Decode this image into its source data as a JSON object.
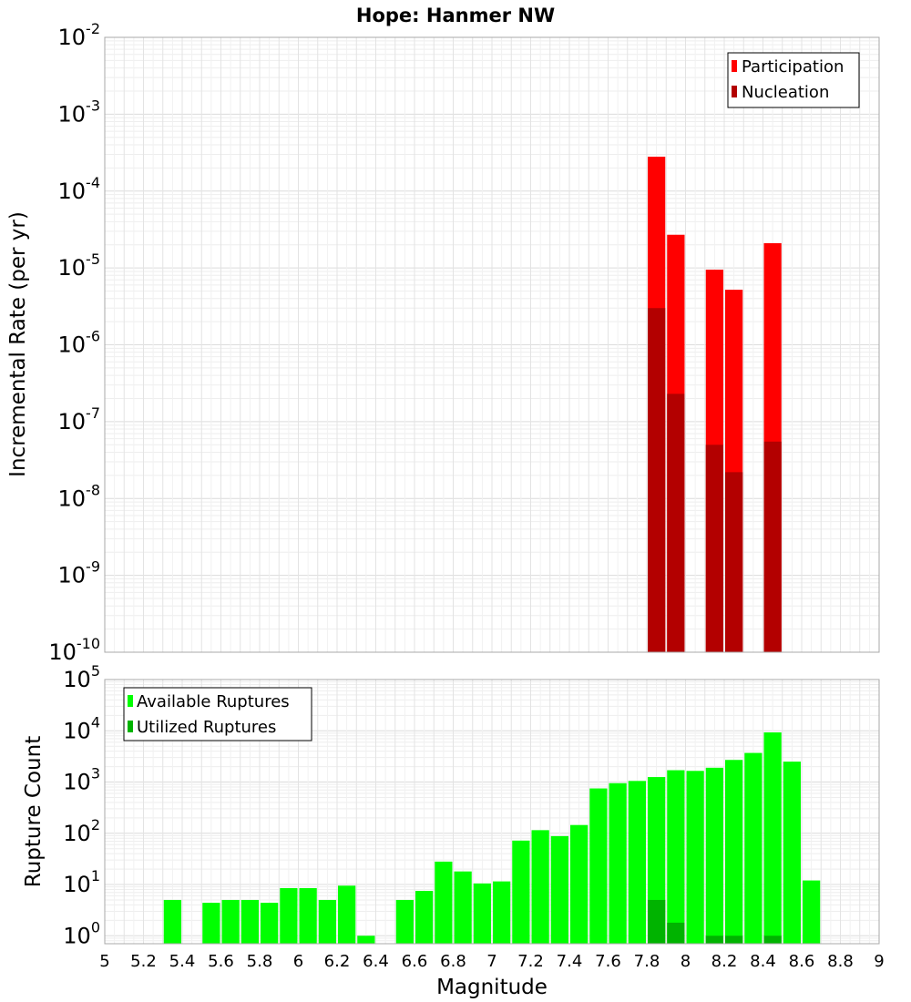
{
  "chart_data": [
    {
      "type": "bar",
      "title": "Hope: Hanmer NW",
      "xlabel": "",
      "ylabel": "Incremental Rate (per yr)",
      "yscale": "log",
      "xlim": [
        5,
        9
      ],
      "ylim": [
        1e-10,
        0.01
      ],
      "y_tick_exponents": [
        -10,
        -9,
        -8,
        -7,
        -6,
        -5,
        -4,
        -3,
        -2
      ],
      "legend_position": "top-right",
      "series": [
        {
          "name": "Participation",
          "color": "#ff0000",
          "points": [
            {
              "x": 7.85,
              "y": 0.00028
            },
            {
              "x": 7.95,
              "y": 2.7e-05
            },
            {
              "x": 8.15,
              "y": 9.5e-06
            },
            {
              "x": 8.25,
              "y": 5.2e-06
            },
            {
              "x": 8.45,
              "y": 2.1e-05
            }
          ]
        },
        {
          "name": "Nucleation",
          "color": "#b30000",
          "points": [
            {
              "x": 7.85,
              "y": 3e-06
            },
            {
              "x": 7.95,
              "y": 2.3e-07
            },
            {
              "x": 8.15,
              "y": 5e-08
            },
            {
              "x": 8.25,
              "y": 2.2e-08
            },
            {
              "x": 8.45,
              "y": 5.5e-08
            }
          ]
        }
      ]
    },
    {
      "type": "bar",
      "title": "",
      "xlabel": "Magnitude",
      "ylabel": "Rupture Count",
      "yscale": "log",
      "xlim": [
        5,
        9
      ],
      "ylim": [
        0.7,
        100000
      ],
      "y_tick_exponents": [
        0,
        1,
        2,
        3,
        4,
        5
      ],
      "x_ticks": [
        "5",
        "5.2",
        "5.4",
        "5.6",
        "5.8",
        "6",
        "6.2",
        "6.4",
        "6.6",
        "6.8",
        "7",
        "7.2",
        "7.4",
        "7.6",
        "7.8",
        "8",
        "8.2",
        "8.4",
        "8.6",
        "8.8",
        "9"
      ],
      "legend_position": "top-left",
      "series": [
        {
          "name": "Available Ruptures",
          "color": "#00ff00",
          "points": [
            {
              "x": 5.35,
              "y": 5
            },
            {
              "x": 5.55,
              "y": 4.4
            },
            {
              "x": 5.65,
              "y": 5
            },
            {
              "x": 5.75,
              "y": 5
            },
            {
              "x": 5.85,
              "y": 4.4
            },
            {
              "x": 5.95,
              "y": 8.5
            },
            {
              "x": 6.05,
              "y": 8.5
            },
            {
              "x": 6.15,
              "y": 5
            },
            {
              "x": 6.25,
              "y": 9.5
            },
            {
              "x": 6.35,
              "y": 1
            },
            {
              "x": 6.55,
              "y": 5
            },
            {
              "x": 6.65,
              "y": 7.5
            },
            {
              "x": 6.75,
              "y": 28
            },
            {
              "x": 6.85,
              "y": 18
            },
            {
              "x": 6.95,
              "y": 10.5
            },
            {
              "x": 7.05,
              "y": 11.5
            },
            {
              "x": 7.15,
              "y": 72
            },
            {
              "x": 7.25,
              "y": 115
            },
            {
              "x": 7.35,
              "y": 88
            },
            {
              "x": 7.45,
              "y": 145
            },
            {
              "x": 7.55,
              "y": 750
            },
            {
              "x": 7.65,
              "y": 950
            },
            {
              "x": 7.75,
              "y": 1050
            },
            {
              "x": 7.85,
              "y": 1250
            },
            {
              "x": 7.95,
              "y": 1700
            },
            {
              "x": 8.05,
              "y": 1650
            },
            {
              "x": 8.15,
              "y": 1900
            },
            {
              "x": 8.25,
              "y": 2700
            },
            {
              "x": 8.35,
              "y": 3700
            },
            {
              "x": 8.45,
              "y": 9300
            },
            {
              "x": 8.55,
              "y": 2500
            },
            {
              "x": 8.65,
              "y": 12
            }
          ]
        },
        {
          "name": "Utilized Ruptures",
          "color": "#00b300",
          "points": [
            {
              "x": 7.85,
              "y": 5
            },
            {
              "x": 7.95,
              "y": 1.8
            },
            {
              "x": 8.15,
              "y": 1
            },
            {
              "x": 8.25,
              "y": 1
            },
            {
              "x": 8.45,
              "y": 1
            }
          ]
        }
      ]
    }
  ]
}
